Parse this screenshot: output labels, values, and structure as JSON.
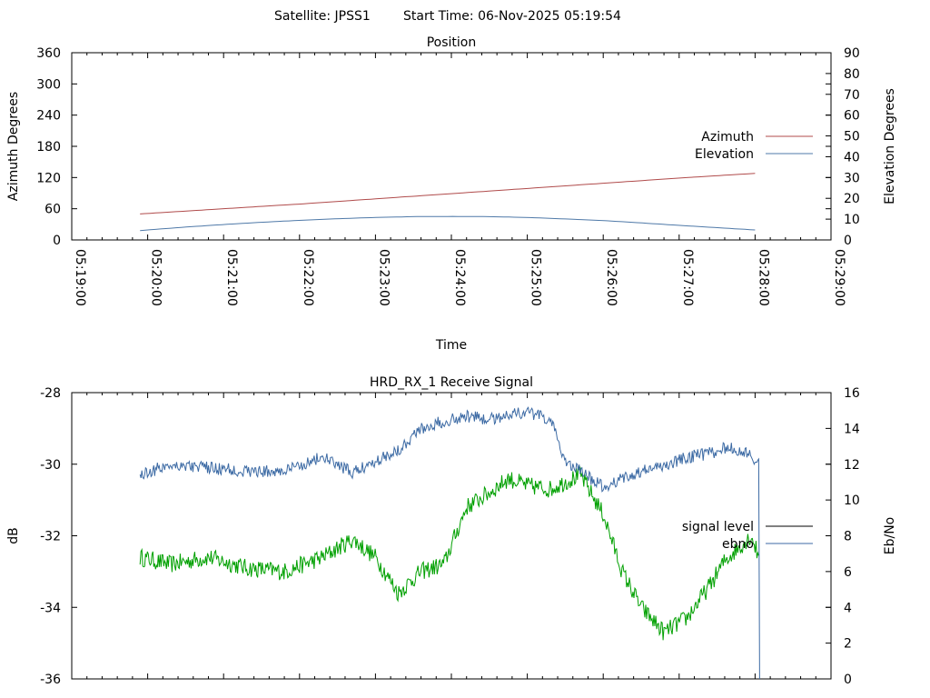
{
  "header": {
    "satellite_label": "Satellite: JPSS1",
    "start_time_label": "Start Time: 06-Nov-2025 05:19:54"
  },
  "chart_data": [
    {
      "type": "line",
      "title": "Position",
      "xlabel": "Time",
      "ylabel": "Azimuth Degrees",
      "y2label": "Elevation Degrees",
      "x_unit": "minutes since 05:19:00",
      "xlim": [
        0,
        10
      ],
      "ylim": [
        0,
        360
      ],
      "y2lim": [
        0,
        90
      ],
      "x_ticks": [
        0,
        1,
        2,
        3,
        4,
        5,
        6,
        7,
        8,
        9,
        10
      ],
      "x_tick_labels": [
        "05:19:00",
        "05:20:00",
        "05:21:00",
        "05:22:00",
        "05:23:00",
        "05:24:00",
        "05:25:00",
        "05:26:00",
        "05:27:00",
        "05:28:00",
        "05:29:00"
      ],
      "y_ticks": [
        0,
        60,
        120,
        180,
        240,
        300,
        360
      ],
      "y_tick_labels": [
        "0",
        "60",
        "120",
        "180",
        "240",
        "300",
        "360"
      ],
      "y2_ticks": [
        0,
        10,
        20,
        30,
        40,
        50,
        60,
        70,
        80,
        90
      ],
      "y2_tick_labels": [
        "0",
        "10",
        "20",
        "30",
        "40",
        "50",
        "60",
        "70",
        "80",
        "90"
      ],
      "legend_position": "right",
      "series": [
        {
          "name": "Azimuth",
          "axis": "y",
          "color": "#b04b4b",
          "x": [
            0.9,
            2,
            3,
            4,
            5,
            6,
            7,
            8,
            9.0
          ],
          "values": [
            50,
            60,
            69,
            79,
            89,
            99,
            109,
            119,
            128
          ]
        },
        {
          "name": "Elevation",
          "axis": "y2",
          "color": "#4f79a8",
          "x": [
            0.9,
            1.5,
            2,
            2.5,
            3,
            3.5,
            4,
            4.5,
            5,
            5.5,
            6,
            6.5,
            7,
            7.5,
            8,
            8.5,
            9.0
          ],
          "values": [
            4.5,
            6.2,
            7.4,
            8.5,
            9.4,
            10.2,
            10.8,
            11.2,
            11.3,
            11.2,
            10.8,
            10.1,
            9.3,
            8.2,
            7.0,
            5.9,
            4.8
          ]
        }
      ]
    },
    {
      "type": "line",
      "title": "HRD_RX_1 Receive Signal",
      "xlabel": "",
      "ylabel": "dB",
      "y2label": "Eb/No",
      "x_unit": "minutes since 05:19:00",
      "xlim": [
        0,
        10
      ],
      "ylim": [
        -36,
        -28
      ],
      "y2lim": [
        0,
        16
      ],
      "x_ticks": [
        0,
        1,
        2,
        3,
        4,
        5,
        6,
        7,
        8,
        9,
        10
      ],
      "y_ticks": [
        -36,
        -34,
        -32,
        -30,
        -28
      ],
      "y_tick_labels": [
        "-36",
        "-34",
        "-32",
        "-30",
        "-28"
      ],
      "y2_ticks": [
        0,
        2,
        4,
        6,
        8,
        10,
        12,
        14,
        16
      ],
      "y2_tick_labels": [
        "0",
        "2",
        "4",
        "6",
        "8",
        "10",
        "12",
        "14",
        "16"
      ],
      "legend_position": "right",
      "series": [
        {
          "name": "signal level",
          "axis": "y",
          "color": "#00a000",
          "x": [
            0.9,
            1.3,
            1.8,
            2.3,
            2.8,
            3.3,
            3.7,
            4.0,
            4.3,
            4.6,
            4.9,
            5.2,
            5.5,
            5.75,
            6.0,
            6.3,
            6.5,
            6.7,
            7.0,
            7.25,
            7.5,
            7.8,
            8.1,
            8.4,
            8.6,
            8.8,
            8.95,
            9.05
          ],
          "values": [
            -32.6,
            -32.8,
            -32.6,
            -32.9,
            -33.0,
            -32.6,
            -32.1,
            -32.6,
            -33.6,
            -33.0,
            -32.8,
            -31.2,
            -30.8,
            -30.4,
            -30.6,
            -30.7,
            -30.5,
            -30.3,
            -31.4,
            -33.0,
            -34.0,
            -34.7,
            -34.3,
            -33.4,
            -32.7,
            -32.3,
            -32.0,
            -32.6
          ]
        },
        {
          "name": "ebno",
          "axis": "y2",
          "color": "#3c6aa4",
          "x": [
            0.9,
            1.3,
            1.8,
            2.3,
            2.8,
            3.3,
            3.7,
            4.0,
            4.3,
            4.6,
            4.9,
            5.2,
            5.5,
            5.75,
            6.0,
            6.3,
            6.5,
            6.7,
            7.0,
            7.25,
            7.5,
            7.8,
            8.1,
            8.4,
            8.6,
            8.8,
            8.95,
            9.05,
            9.06
          ],
          "values": [
            11.4,
            12.0,
            11.8,
            11.6,
            11.6,
            12.4,
            11.5,
            12.2,
            12.8,
            14.0,
            14.4,
            14.7,
            14.5,
            14.8,
            14.9,
            14.5,
            12.2,
            11.6,
            10.7,
            11.2,
            11.6,
            11.9,
            12.4,
            12.6,
            12.9,
            12.8,
            12.4,
            12.2,
            0.0
          ]
        }
      ]
    }
  ]
}
